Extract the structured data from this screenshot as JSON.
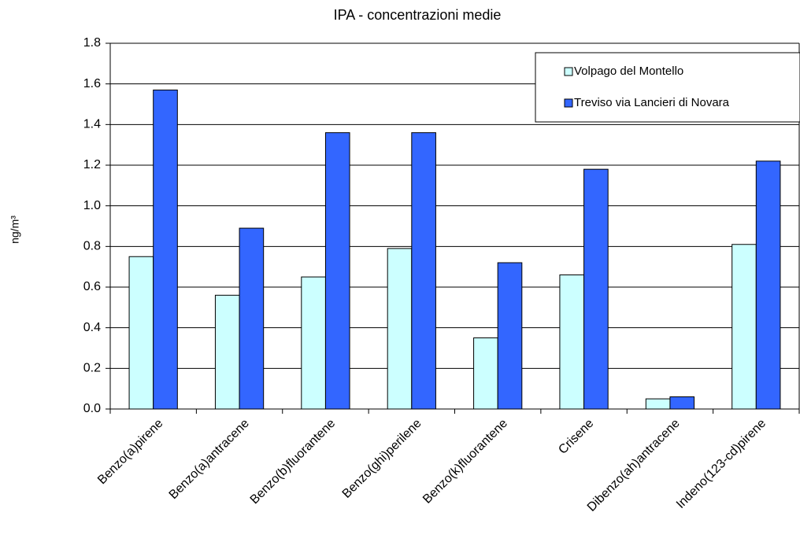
{
  "chart_data": {
    "type": "bar",
    "title": "IPA - concentrazioni medie",
    "y_label": "ng/m³",
    "categories": [
      "Benzo(a)pirene",
      "Benzo(a)antracene",
      "Benzo(b)fluorantene",
      "Benzo(ghi)perilene",
      "Benzo(k)fluorantene",
      "Crisene",
      "Dibenzo(ah)antracene",
      "Indeno(123-cd)pirene"
    ],
    "series": [
      {
        "name": "Volpago del Montello",
        "color": "#ccffff",
        "values": [
          0.75,
          0.56,
          0.65,
          0.79,
          0.35,
          0.66,
          0.05,
          0.81
        ]
      },
      {
        "name": "Treviso via Lancieri di Novara",
        "color": "#3366ff",
        "values": [
          1.57,
          0.89,
          1.36,
          1.36,
          0.72,
          1.18,
          0.06,
          1.22
        ]
      }
    ],
    "ylim": [
      0,
      1.8
    ],
    "yticks": [
      {
        "value": 0,
        "label": "0.0"
      },
      {
        "value": 0.2,
        "label": "0.2"
      },
      {
        "value": 0.4,
        "label": "0.4"
      },
      {
        "value": 0.6,
        "label": "0.6"
      },
      {
        "value": 0.8,
        "label": "0.8"
      },
      {
        "value": 1,
        "label": "1.0"
      },
      {
        "value": 1.2,
        "label": "1.2"
      },
      {
        "value": 1.4,
        "label": "1.4"
      },
      {
        "value": 1.6,
        "label": "1.6"
      },
      {
        "value": 1.8,
        "label": "1.8"
      }
    ],
    "grid": true,
    "legend_position": "top-right"
  }
}
